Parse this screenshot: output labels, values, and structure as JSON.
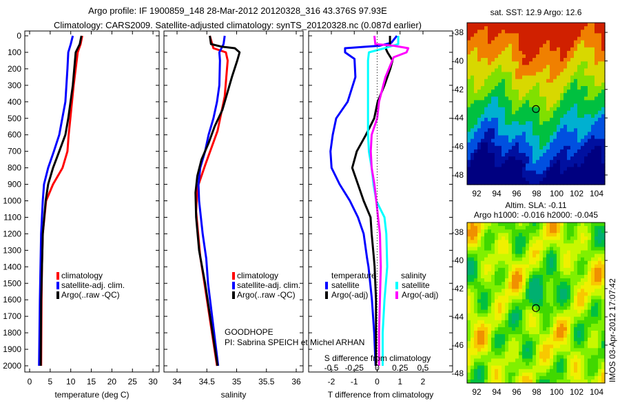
{
  "header": {
    "line1": "Argo profile: IF 1900859_148 28-Mar-2012 20120328_316 43.376S 97.93E",
    "line2": "Climatology: CARS2009. Satellite-adjusted climatology: synTS_20120328.nc (0.087d earlier)"
  },
  "colors": {
    "climatology": "#ff0000",
    "satellite": "#0000ff",
    "argo": "#000000",
    "sal_satellite": "#00ffff",
    "sal_argo": "#ff00ff"
  },
  "chart_data": [
    {
      "type": "line",
      "id": "temperature",
      "xlabel": "temperature (deg C)",
      "xlim": [
        -1,
        31.5
      ],
      "ylim": [
        2060,
        0
      ],
      "xticks": [
        "0",
        "5",
        "10",
        "15",
        "20",
        "25",
        "30"
      ],
      "yticks": [
        "0",
        "100",
        "200",
        "300",
        "400",
        "500",
        "600",
        "700",
        "800",
        "900",
        "1000",
        "1100",
        "1200",
        "1300",
        "1400",
        "1500",
        "1600",
        "1700",
        "1800",
        "1900",
        "2000"
      ],
      "legend": [
        "climatology",
        "satellite-adj. clim.",
        "Argo(..raw -QC)"
      ],
      "series": [
        {
          "name": "climatology",
          "color": "#ff0000",
          "depth": [
            0,
            50,
            100,
            300,
            500,
            600,
            700,
            800,
            900,
            1000,
            1200,
            1400,
            1600,
            2000
          ],
          "values": [
            12.8,
            12.4,
            11.7,
            10.7,
            9.9,
            9.5,
            9.2,
            8.0,
            5.7,
            4.0,
            3.2,
            3.0,
            2.9,
            2.8
          ]
        },
        {
          "name": "satellite-adj. clim.",
          "color": "#0000ff",
          "depth": [
            0,
            50,
            100,
            200,
            400,
            600,
            700,
            800,
            900,
            1000,
            1200,
            1600,
            2000
          ],
          "values": [
            10.5,
            10.0,
            9.4,
            9.2,
            8.7,
            7.2,
            5.9,
            4.5,
            3.5,
            3.2,
            2.8,
            2.5,
            2.3
          ]
        },
        {
          "name": "Argo(..raw -QC)",
          "color": "#000000",
          "depth": [
            0,
            50,
            100,
            300,
            500,
            600,
            700,
            800,
            900,
            1000,
            1200,
            1600,
            2000
          ],
          "values": [
            12.6,
            12.2,
            11.2,
            10.5,
            9.4,
            8.7,
            7.2,
            5.7,
            4.5,
            3.9,
            3.2,
            2.8,
            2.7
          ]
        }
      ]
    },
    {
      "type": "line",
      "id": "salinity",
      "xlabel": "salinity",
      "xlim": [
        33.78,
        36.1
      ],
      "ylim": [
        2060,
        0
      ],
      "xticks": [
        "34",
        "34.5",
        "35",
        "35.5",
        "36"
      ],
      "legend": [
        "climatology",
        "satellite-adj. clim.",
        "Argo(..raw -QC)"
      ],
      "annotation": [
        "GOODHOPE",
        "PI: Sabrina SPEICH et Michel ARHAN"
      ],
      "series": [
        {
          "name": "climatology",
          "color": "#ff0000",
          "depth": [
            0,
            75,
            100,
            150,
            367,
            576,
            785,
            923,
            1065,
            1340,
            1500,
            2000
          ],
          "values": [
            34.55,
            34.61,
            34.82,
            34.85,
            34.8,
            34.68,
            34.47,
            34.34,
            34.32,
            34.39,
            34.46,
            34.67
          ]
        },
        {
          "name": "satellite-adj. clim.",
          "color": "#0000ff",
          "depth": [
            0,
            50,
            100,
            150,
            300,
            400,
            500,
            600,
            700,
            800,
            900,
            1000,
            1200,
            1350,
            1500,
            2000
          ],
          "values": [
            34.8,
            34.78,
            34.71,
            34.72,
            34.71,
            34.67,
            34.61,
            34.53,
            34.47,
            34.39,
            34.36,
            34.37,
            34.43,
            34.49,
            34.52,
            34.69
          ]
        },
        {
          "name": "Argo(..raw -QC)",
          "color": "#000000",
          "depth": [
            0,
            50,
            65,
            75,
            100,
            150,
            250,
            350,
            450,
            550,
            650,
            750,
            850,
            950,
            1100,
            1300,
            1500,
            2000
          ],
          "values": [
            34.55,
            34.57,
            34.74,
            34.97,
            35.05,
            35.01,
            34.92,
            34.84,
            34.76,
            34.63,
            34.53,
            34.41,
            34.34,
            34.31,
            34.32,
            34.37,
            34.47,
            34.68
          ]
        }
      ]
    },
    {
      "type": "line",
      "id": "difference",
      "xlabel": "T difference from climatology",
      "xlabel2": "S difference from climatology",
      "xlim": [
        -3,
        3.3
      ],
      "xlim_s": [
        -0.75,
        0.825
      ],
      "ylim": [
        2060,
        0
      ],
      "xticks": [
        "-2",
        "-1",
        "0",
        "1",
        "2"
      ],
      "xticks_s": [
        "-0.5",
        "-0.25",
        "0",
        "0.25",
        "0.5"
      ],
      "legend_titles": [
        "temperature",
        "salinity"
      ],
      "legend": [
        "satellite",
        "Argo(-adj)",
        "satellite",
        "Argo(-adj)"
      ],
      "series": [
        {
          "name": "T satellite",
          "unit": "T",
          "color": "#0000ff",
          "depth": [
            0,
            42,
            60,
            75,
            100,
            140,
            250,
            400,
            500,
            600,
            700,
            800,
            900,
            1000,
            1100,
            1200,
            1350,
            1400,
            1600,
            1800,
            2000
          ],
          "values": [
            0.86,
            0.62,
            0.1,
            -1.4,
            -1.4,
            -0.99,
            -0.95,
            -1.29,
            -1.79,
            -1.94,
            -2.04,
            -1.99,
            -1.64,
            -1.19,
            -0.84,
            -0.59,
            -0.44,
            -0.38,
            -0.23,
            -0.13,
            -0.07
          ]
        },
        {
          "name": "T Argo(-adj)",
          "unit": "T",
          "color": "#000000",
          "depth": [
            0,
            50,
            75,
            100,
            150,
            200,
            300,
            400,
            500,
            600,
            700,
            800,
            900,
            1000,
            1100,
            1200,
            1350,
            1400,
            1600,
            2000
          ],
          "values": [
            0.56,
            0.56,
            0.37,
            0.45,
            0.67,
            0.57,
            0.32,
            0.02,
            -0.13,
            -0.49,
            -0.89,
            -1.09,
            -0.84,
            -0.59,
            -0.29,
            -0.24,
            -0.14,
            -0.11,
            -0.05,
            -0.05
          ]
        },
        {
          "name": "S satellite",
          "unit": "S",
          "color": "#00ffff",
          "depth": [
            0,
            50,
            75,
            100,
            150,
            300,
            500,
            600,
            700,
            800,
            900,
            1000,
            1100,
            1200,
            1400,
            1600,
            1800,
            2000
          ],
          "values": [
            0.23,
            0.23,
            0.08,
            -0.09,
            -0.1,
            -0.1,
            -0.1,
            -0.1,
            -0.09,
            -0.06,
            -0.04,
            -0.01,
            0.08,
            0.1,
            0.11,
            0.08,
            0.06,
            0.06
          ]
        },
        {
          "name": "S Argo(-adj)",
          "unit": "S",
          "color": "#ff00ff",
          "depth": [
            0,
            50,
            60,
            75,
            100,
            130,
            250,
            400,
            500,
            600,
            700,
            800,
            900,
            1000,
            1100,
            1200,
            1400,
            1600,
            1800,
            2000
          ],
          "values": [
            -0.03,
            -0.02,
            0.18,
            0.34,
            0.32,
            0.18,
            0.09,
            0.02,
            0.0,
            -0.06,
            -0.07,
            -0.06,
            -0.03,
            -0.01,
            0.01,
            0.03,
            0.04,
            0.03,
            0.02,
            0.02
          ]
        }
      ]
    },
    {
      "type": "heatmap",
      "id": "sst_map",
      "title": "sat. SST: 12.9 Argo: 12.6",
      "xlim": [
        91,
        105
      ],
      "ylim": [
        -37.3,
        -49.4
      ],
      "xticks": [
        "92",
        "94",
        "96",
        "98",
        "100",
        "102",
        "104"
      ],
      "yticks": [
        "-38",
        "-40",
        "-42",
        "-44",
        "-46",
        "-48"
      ],
      "marker": {
        "lon": 97.93,
        "lat": -43.376
      }
    },
    {
      "type": "heatmap",
      "id": "sla_map",
      "title": "Altim. SLA: -0.11",
      "subtitle": "Argo h1000: -0.016 h2000: -0.045",
      "xlim": [
        91,
        105
      ],
      "ylim": [
        -37.3,
        -49.4
      ],
      "xticks": [
        "92",
        "94",
        "96",
        "98",
        "100",
        "102",
        "104"
      ],
      "yticks": [
        "-38",
        "-40",
        "-42",
        "-44",
        "-46",
        "-48"
      ],
      "marker": {
        "lon": 97.93,
        "lat": -43.376
      }
    }
  ],
  "footer": {
    "stamp": "IMOS 03-Apr-2012 17:07:42"
  }
}
